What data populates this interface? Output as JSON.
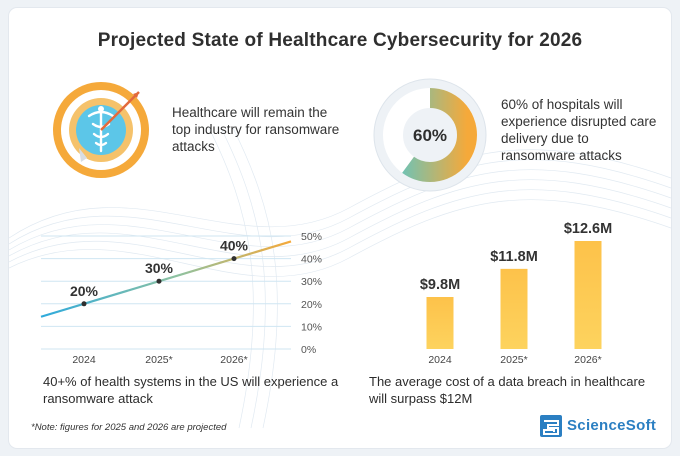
{
  "title": "Projected State of Healthcare Cybersecurity for 2026",
  "facts": [
    {
      "text": "Healthcare will remain the top industry for ransomware attacks",
      "icon": "caduceus-target-icon"
    },
    {
      "text": "60% of hospitals will experience disrupted care delivery due to ransomware attacks",
      "donut_label": "60%",
      "donut_value": 60
    }
  ],
  "chart_data": [
    {
      "type": "line",
      "categories": [
        "2024",
        "2025*",
        "2026*"
      ],
      "values": [
        20,
        30,
        40
      ],
      "data_labels": [
        "20%",
        "30%",
        "40%"
      ],
      "ylim": [
        0,
        50
      ],
      "yticks": [
        "0%",
        "10%",
        "20%",
        "30%",
        "40%",
        "50%"
      ],
      "ytick_values": [
        0,
        10,
        20,
        30,
        40,
        50
      ],
      "grid": true,
      "caption": "40+% of health systems in the US will experience a ransomware attack"
    },
    {
      "type": "bar",
      "categories": [
        "2024",
        "2025*",
        "2026*"
      ],
      "values": [
        9.8,
        11.8,
        12.6
      ],
      "data_labels": [
        "$9.8M",
        "$11.8M",
        "$12.6M"
      ],
      "caption": "The average cost of a data breach in healthcare will surpass $12M"
    }
  ],
  "colors": {
    "accent_orange": "#f5a93a",
    "accent_teal": "#5ec6c4",
    "bar_yellow": "#fdd35e",
    "line_blue": "#2eaadc",
    "brand_blue": "#2b7fc2"
  },
  "note": "*Note: figures for 2025 and 2026 are projected",
  "logo": {
    "text": "ScienceSoft",
    "icon": "sciencesoft-logo-icon"
  }
}
